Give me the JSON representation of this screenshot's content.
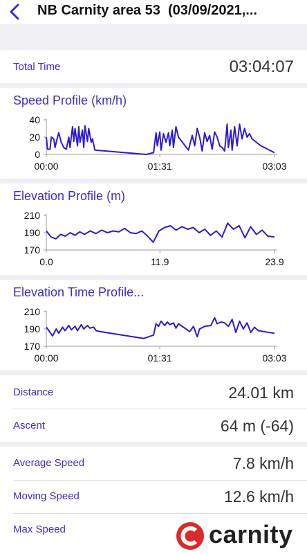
{
  "header": {
    "title": "NB Carnity area 53  (03/09/2021,..."
  },
  "total_time": {
    "label": "Total Time",
    "value": "03:04:07"
  },
  "charts": [
    {
      "type": "line",
      "title": "Speed Profile (km/h)",
      "color": "#2a1ad6",
      "x": [
        0,
        1,
        3,
        4,
        6,
        7,
        9,
        10,
        12,
        14,
        16,
        18,
        19,
        21,
        22,
        23,
        25,
        26,
        27,
        29,
        30,
        31,
        33,
        34,
        36,
        37,
        39,
        80,
        86,
        88,
        89,
        91,
        92,
        94,
        96,
        98,
        99,
        101,
        102,
        104,
        106,
        114,
        117,
        119,
        121,
        123,
        125,
        127,
        129,
        131,
        133,
        135,
        137,
        139,
        141,
        143,
        145,
        146,
        148,
        149,
        151,
        153,
        155,
        157,
        159,
        161,
        163,
        165,
        172,
        183
      ],
      "values": [
        20,
        6,
        6,
        20,
        18,
        8,
        20,
        25,
        14,
        8,
        6,
        20,
        8,
        32,
        15,
        30,
        10,
        32,
        14,
        28,
        8,
        33,
        15,
        30,
        14,
        18,
        5,
        0,
        2,
        25,
        10,
        26,
        5,
        24,
        14,
        25,
        10,
        28,
        8,
        32,
        20,
        5,
        22,
        10,
        30,
        20,
        4,
        25,
        15,
        22,
        6,
        26,
        20,
        10,
        8,
        4,
        35,
        8,
        28,
        5,
        32,
        10,
        35,
        18,
        30,
        20,
        24,
        18,
        10,
        2
      ],
      "xlim": [
        0,
        183
      ],
      "xticks": [
        {
          "value": 0,
          "label": "00:00"
        },
        {
          "value": 91,
          "label": "01:31"
        },
        {
          "value": 183,
          "label": "03:03"
        }
      ],
      "ylim": [
        0,
        40
      ],
      "yticks": [
        0,
        20,
        40
      ]
    },
    {
      "type": "line",
      "title": "Elevation Profile (m)",
      "color": "#2a1ad6",
      "x": [
        0,
        0.5,
        1.0,
        1.5,
        2.0,
        2.5,
        3.0,
        3.5,
        4.0,
        4.6,
        5.2,
        5.8,
        6.4,
        7.0,
        7.6,
        8.2,
        8.8,
        9.4,
        10.0,
        10.6,
        11.2,
        11.8,
        12.4,
        13.0,
        13.6,
        14.2,
        14.8,
        15.4,
        16.0,
        16.6,
        17.2,
        17.8,
        18.4,
        19.0,
        19.6,
        20.2,
        20.8,
        21.4,
        22.0,
        22.6,
        23.2,
        23.9
      ],
      "values": [
        192,
        185,
        183,
        188,
        186,
        190,
        187,
        191,
        188,
        192,
        189,
        193,
        190,
        192,
        191,
        195,
        190,
        189,
        192,
        186,
        179,
        192,
        196,
        198,
        193,
        197,
        194,
        196,
        190,
        194,
        187,
        192,
        185,
        201,
        194,
        198,
        184,
        197,
        188,
        193,
        186,
        185
      ],
      "xlim": [
        0,
        23.9
      ],
      "xticks": [
        {
          "value": 0,
          "label": "0.0"
        },
        11.9,
        23.9
      ],
      "ylim": [
        170,
        210
      ],
      "yticks": [
        170,
        190,
        210
      ]
    },
    {
      "type": "line",
      "title": "Elevation Time Profile...",
      "color": "#2a1ad6",
      "x": [
        0,
        3,
        5,
        8,
        10,
        13,
        15,
        18,
        20,
        23,
        25,
        28,
        30,
        33,
        35,
        38,
        40,
        43,
        78,
        86,
        88,
        90,
        92,
        95,
        97,
        99,
        102,
        104,
        106,
        115,
        118,
        121,
        123,
        127,
        132,
        135,
        137,
        140,
        143,
        146,
        149,
        152,
        155,
        158,
        161,
        164,
        167,
        170,
        183
      ],
      "values": [
        192,
        186,
        182,
        190,
        185,
        192,
        188,
        194,
        189,
        193,
        188,
        195,
        190,
        194,
        191,
        192,
        188,
        187,
        179,
        183,
        196,
        193,
        199,
        194,
        198,
        195,
        197,
        191,
        196,
        187,
        193,
        181,
        190,
        193,
        194,
        203,
        196,
        198,
        197,
        193,
        201,
        186,
        199,
        190,
        197,
        186,
        192,
        188,
        185
      ],
      "xlim": [
        0,
        183
      ],
      "xticks": [
        {
          "value": 0,
          "label": "00:00"
        },
        {
          "value": 91,
          "label": "01:31"
        },
        {
          "value": 183,
          "label": "03:03"
        }
      ],
      "ylim": [
        170,
        210
      ],
      "yticks": [
        170,
        190,
        210
      ]
    }
  ],
  "stats": [
    [
      {
        "label": "Distance",
        "value": "24.01 km"
      },
      {
        "label": "Ascent",
        "value": "64 m (-64)"
      }
    ],
    [
      {
        "label": "Average Speed",
        "value": "7.8 km/h"
      },
      {
        "label": "Moving Speed",
        "value": "12.6 km/h"
      },
      {
        "label": "Max Speed"
      }
    ]
  ],
  "watermark": "carnity"
}
